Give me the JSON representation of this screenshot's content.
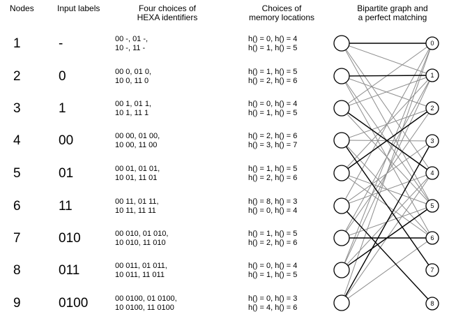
{
  "headers": {
    "nodes": "Nodes",
    "input_labels": "Input labels",
    "hexa_line1": "Four choices of",
    "hexa_line2": "HEXA identifiers",
    "mem_line1": "Choices of",
    "mem_line2": "memory locations",
    "graph_line1": "Bipartite graph and",
    "graph_line2": "a perfect matching"
  },
  "rows": [
    {
      "node": "1",
      "label": "-",
      "hexa1": "00 -, 01 -,",
      "hexa2": "10 -, 11 -",
      "mem1": "h() = 0, h() = 4",
      "mem2": "h() = 1, h() = 5"
    },
    {
      "node": "2",
      "label": "0",
      "hexa1": "00 0, 01 0,",
      "hexa2": "10 0, 11 0",
      "mem1": "h() = 1, h() = 5",
      "mem2": "h() = 2, h() = 6"
    },
    {
      "node": "3",
      "label": "1",
      "hexa1": "00 1, 01 1,",
      "hexa2": "10 1, 11 1",
      "mem1": "h() = 0, h() = 4",
      "mem2": "h() = 1, h() = 5"
    },
    {
      "node": "4",
      "label": "00",
      "hexa1": "00 00, 01 00,",
      "hexa2": "10 00, 11 00",
      "mem1": "h() = 2, h() = 6",
      "mem2": "h() = 3, h() = 7"
    },
    {
      "node": "5",
      "label": "01",
      "hexa1": "00 01, 01 01,",
      "hexa2": "10 01, 11 01",
      "mem1": "h() = 1, h() = 5",
      "mem2": "h() = 2, h() = 6"
    },
    {
      "node": "6",
      "label": "11",
      "hexa1": "00 11, 01 11,",
      "hexa2": "10 11, 11 11",
      "mem1": "h() = 8, h() = 3",
      "mem2": "h() = 0, h() = 4"
    },
    {
      "node": "7",
      "label": "010",
      "hexa1": "00 010, 01 010,",
      "hexa2": "10 010, 11 010",
      "mem1": "h() = 1, h() = 5",
      "mem2": "h() = 2, h() = 6"
    },
    {
      "node": "8",
      "label": "011",
      "hexa1": "00 011, 01 011,",
      "hexa2": "10 011, 11 011",
      "mem1": "h() = 0, h() = 4",
      "mem2": "h() = 1, h() = 5"
    },
    {
      "node": "9",
      "label": "0100",
      "hexa1": "00 0100, 01 0100,",
      "hexa2": "10 0100, 11 0100",
      "mem1": "h() = 0, h() = 3",
      "mem2": "h() = 4, h() = 6"
    }
  ],
  "memory_locations": [
    "0",
    "1",
    "2",
    "3",
    "4",
    "5",
    "6",
    "7",
    "8"
  ],
  "edges": [
    [
      [
        0,
        0
      ],
      [
        0,
        1
      ],
      [
        0,
        4
      ],
      [
        0,
        5
      ]
    ],
    [
      [
        1,
        1
      ],
      [
        1,
        2
      ],
      [
        1,
        5
      ],
      [
        1,
        6
      ]
    ],
    [
      [
        2,
        0
      ],
      [
        2,
        1
      ],
      [
        2,
        4
      ],
      [
        2,
        5
      ]
    ],
    [
      [
        3,
        2
      ],
      [
        3,
        3
      ],
      [
        3,
        6
      ],
      [
        3,
        7
      ]
    ],
    [
      [
        4,
        1
      ],
      [
        4,
        2
      ],
      [
        4,
        5
      ],
      [
        4,
        6
      ]
    ],
    [
      [
        5,
        8
      ],
      [
        5,
        3
      ],
      [
        5,
        0
      ],
      [
        5,
        4
      ]
    ],
    [
      [
        6,
        1
      ],
      [
        6,
        2
      ],
      [
        6,
        5
      ],
      [
        6,
        6
      ]
    ],
    [
      [
        7,
        0
      ],
      [
        7,
        1
      ],
      [
        7,
        4
      ],
      [
        7,
        5
      ]
    ],
    [
      [
        8,
        0
      ],
      [
        8,
        3
      ],
      [
        8,
        4
      ],
      [
        8,
        6
      ]
    ]
  ],
  "matching": [
    [
      0,
      0
    ],
    [
      1,
      1
    ],
    [
      2,
      4
    ],
    [
      3,
      7
    ],
    [
      4,
      2
    ],
    [
      5,
      8
    ],
    [
      6,
      6
    ],
    [
      7,
      5
    ],
    [
      8,
      3
    ]
  ]
}
